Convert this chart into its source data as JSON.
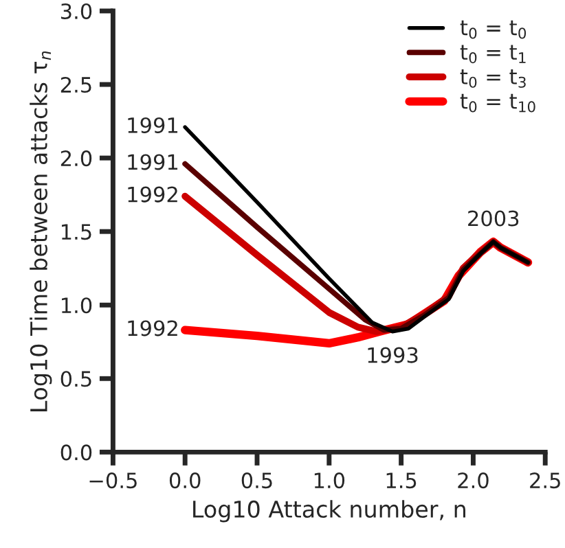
{
  "chart_data": {
    "type": "line",
    "xlabel": "Log10 Attack number, n",
    "ylabel": "Log10 Time between attacks τ$_{n}$",
    "xlim": [
      -0.5,
      2.5
    ],
    "xticks": [
      {
        "value": -0.5,
        "label": "−0.5"
      },
      {
        "value": 0,
        "label": "0.0"
      },
      0.5,
      {
        "value": 1,
        "label": "1.0"
      },
      1.5,
      {
        "value": 2,
        "label": "2.0"
      },
      2.5
    ],
    "ylim": [
      0.0,
      3.0
    ],
    "yticks": [
      {
        "value": 0,
        "label": "0.0"
      },
      0.5,
      {
        "value": 1,
        "label": "1.0"
      },
      1.5,
      {
        "value": 2,
        "label": "2.0"
      },
      2.5,
      {
        "value": 3,
        "label": "3.0"
      }
    ],
    "grid": false,
    "legend": "top right",
    "marker": "none",
    "line_style": "solid",
    "series": [
      {
        "name": "t$_{0}$ = t$_{0}$",
        "color": "#000000",
        "x": [
          0.0,
          0.5,
          1.0,
          1.3,
          1.44,
          1.55,
          1.66,
          1.83,
          1.93,
          2.05,
          2.14,
          2.19,
          2.38
        ],
        "values": [
          2.21,
          1.7,
          1.18,
          0.88,
          0.82,
          0.84,
          0.92,
          1.04,
          1.23,
          1.35,
          1.43,
          1.39,
          1.29
        ]
      },
      {
        "name": "t$_{0}$ = t$_{1}$",
        "color": "#5a0000",
        "x": [
          0.0,
          0.5,
          1.0,
          1.25,
          1.38,
          1.5,
          1.66,
          1.83,
          1.93,
          2.05,
          2.14,
          2.19,
          2.38
        ],
        "values": [
          1.96,
          1.53,
          1.11,
          0.9,
          0.83,
          0.84,
          0.93,
          1.05,
          1.24,
          1.35,
          1.43,
          1.39,
          1.29
        ]
      },
      {
        "name": "t$_{0}$ = t$_{3}$",
        "color": "#cc0000",
        "x": [
          0.0,
          0.5,
          1.0,
          1.2,
          1.33,
          1.5,
          1.66,
          1.83,
          1.93,
          2.05,
          2.14,
          2.19,
          2.38
        ],
        "values": [
          1.74,
          1.34,
          0.95,
          0.85,
          0.82,
          0.85,
          0.94,
          1.06,
          1.25,
          1.36,
          1.43,
          1.39,
          1.29
        ]
      },
      {
        "name": "t$_{0}$ = t$_{10}$",
        "color": "#ff0000",
        "x": [
          0.0,
          0.5,
          1.0,
          1.2,
          1.35,
          1.55,
          1.8,
          1.9,
          2.05,
          2.14,
          2.19,
          2.38
        ],
        "values": [
          0.83,
          0.79,
          0.74,
          0.78,
          0.82,
          0.87,
          1.03,
          1.2,
          1.36,
          1.43,
          1.39,
          1.29
        ]
      }
    ],
    "annotations": [
      {
        "text": "1991",
        "x": 0.0,
        "y": 2.21
      },
      {
        "text": "1991",
        "x": 0.0,
        "y": 1.96
      },
      {
        "text": "1992",
        "x": 0.0,
        "y": 1.74
      },
      {
        "text": "1992",
        "x": 0.0,
        "y": 0.83
      },
      {
        "text": "1993",
        "x": 1.44,
        "y": 0.82
      },
      {
        "text": "2003",
        "x": 2.14,
        "y": 1.43
      }
    ]
  }
}
